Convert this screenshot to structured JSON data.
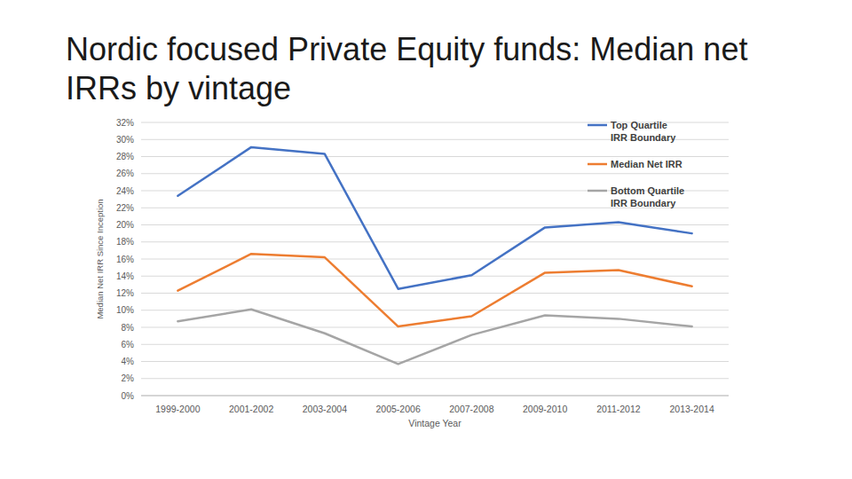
{
  "chart_data": {
    "type": "line",
    "title": "Nordic focused Private Equity funds: Median net IRRs by vintage",
    "y_label": "Median Net IRR Since Inception",
    "x_label": "Vintage Year",
    "categories": [
      "1999-2000",
      "2001-2002",
      "2003-2004",
      "2005-2006",
      "2007-2008",
      "2009-2010",
      "2011-2012",
      "2013-2014"
    ],
    "series": [
      {
        "name": "Top Quartile IRR Boundary",
        "color": "#4472c4",
        "values": [
          23.4,
          29.1,
          28.3,
          12.5,
          14.1,
          19.7,
          20.3,
          19.0
        ]
      },
      {
        "name": "Median Net IRR",
        "color": "#ed7d31",
        "values": [
          12.3,
          16.6,
          16.2,
          8.1,
          9.3,
          14.4,
          14.7,
          12.8
        ]
      },
      {
        "name": "Bottom Quartile IRR Boundary",
        "color": "#a5a5a5",
        "values": [
          8.7,
          10.1,
          7.3,
          3.7,
          7.1,
          9.4,
          9.0,
          8.1
        ]
      }
    ],
    "ylim": [
      0,
      32
    ],
    "yticks": [
      {
        "value": 0,
        "label": "0%"
      },
      {
        "value": 2,
        "label": "2%"
      },
      {
        "value": 4,
        "label": "4%"
      },
      {
        "value": 6,
        "label": "6%"
      },
      {
        "value": 8,
        "label": "8%"
      },
      {
        "value": 10,
        "label": "10%"
      },
      {
        "value": 12,
        "label": "12%"
      },
      {
        "value": 14,
        "label": "14%"
      },
      {
        "value": 16,
        "label": "16%"
      },
      {
        "value": 18,
        "label": "18%"
      },
      {
        "value": 20,
        "label": "20%"
      },
      {
        "value": 22,
        "label": "22%"
      },
      {
        "value": 24,
        "label": "24%"
      },
      {
        "value": 26,
        "label": "26%"
      },
      {
        "value": 28,
        "label": "28%"
      },
      {
        "value": 30,
        "label": "30%"
      },
      {
        "value": 32,
        "label": "32%"
      }
    ],
    "grid": true,
    "legend": "top-right"
  }
}
